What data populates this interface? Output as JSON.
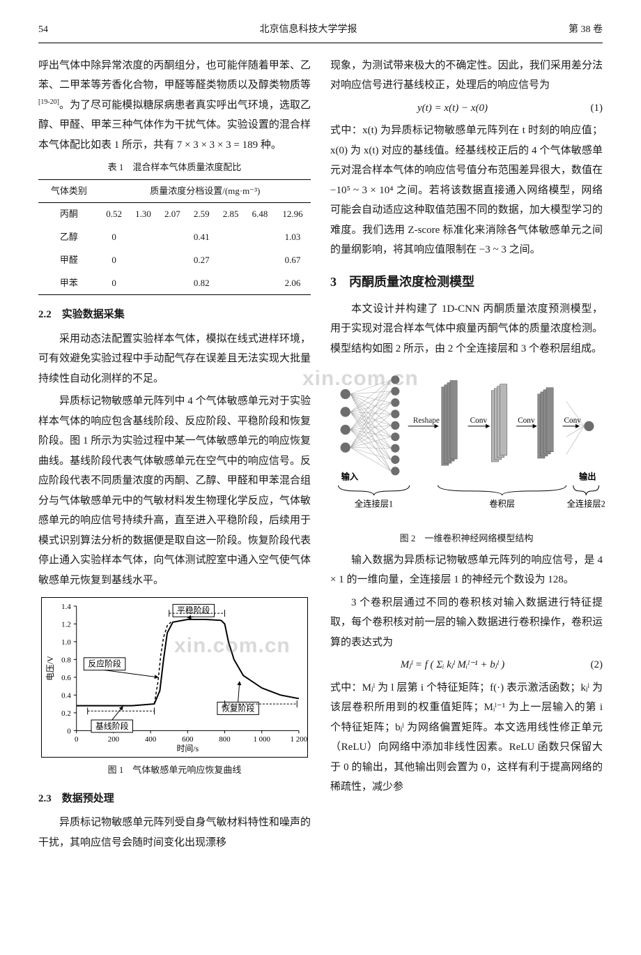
{
  "header": {
    "page_no": "54",
    "journal": "北京信息科技大学学报",
    "volume": "第 38 卷"
  },
  "left": {
    "p1": "呼出气体中除异常浓度的丙酮组分，也可能伴随着甲苯、乙苯、二甲苯等芳香化合物，甲醛等醛类物质以及醇类物质等",
    "p1_cite": "[19-20]",
    "p1b": "。为了尽可能模拟糖尿病患者真实呼出气环境，选取乙醇、甲醛、甲苯三种气体作为干扰气体。实验设置的混合样本气体配比如表 1 所示，共有 7 × 3 × 3 × 3 = 189 种。",
    "table1": {
      "caption": "表 1　混合样本气体质量浓度配比",
      "col_head_left": "气体类别",
      "col_head_right": "质量浓度分档设置/(mg·m⁻³)",
      "rows": [
        {
          "name": "丙酮",
          "cells": [
            "0.52",
            "1.30",
            "2.07",
            "2.59",
            "2.85",
            "6.48",
            "12.96"
          ]
        },
        {
          "name": "乙醇",
          "cells": [
            "0",
            "",
            "",
            "0.41",
            "",
            "",
            "1.03"
          ]
        },
        {
          "name": "甲醛",
          "cells": [
            "0",
            "",
            "",
            "0.27",
            "",
            "",
            "0.67"
          ]
        },
        {
          "name": "甲苯",
          "cells": [
            "0",
            "",
            "",
            "0.82",
            "",
            "",
            "2.06"
          ]
        }
      ]
    },
    "sec22_title": "2.2　实验数据采集",
    "sec22_p1": "采用动态法配置实验样本气体，模拟在线式进样环境，可有效避免实验过程中手动配气存在误差且无法实现大批量持续性自动化测样的不足。",
    "sec22_p2": "异质标记物敏感单元阵列中 4 个气体敏感单元对于实验样本气体的响应包含基线阶段、反应阶段、平稳阶段和恢复阶段。图 1 所示为实验过程中某一气体敏感单元的响应恢复曲线。基线阶段代表气体敏感单元在空气中的响应信号。反应阶段代表不同质量浓度的丙酮、乙醇、甲醛和甲苯混合组分与气体敏感单元中的气敏材料发生物理化学反应，气体敏感单元的响应信号持续升高，直至进入平稳阶段，后续用于模式识别算法分析的数据便是取自这一阶段。恢复阶段代表停止通入实验样本气体，向气体测试腔室中通入空气使气体敏感单元恢复到基线水平。",
    "fig1": {
      "caption": "图 1　气体敏感单元响应恢复曲线",
      "xlabel": "时间/s",
      "ylabel": "电压/V",
      "xlim": [
        0,
        1200
      ],
      "ylim": [
        0,
        1.4
      ],
      "xticks": [
        0,
        200,
        400,
        600,
        800,
        1000,
        1200
      ],
      "yticks": [
        0,
        0.2,
        0.4,
        0.6,
        0.8,
        1.0,
        1.2,
        1.4
      ],
      "annot": {
        "stable": "平稳阶段",
        "react": "反应阶段",
        "baseline": "基线阶段",
        "recover": "恢复阶段"
      },
      "curve_main": [
        [
          0,
          0.28
        ],
        [
          150,
          0.28
        ],
        [
          300,
          0.28
        ],
        [
          420,
          0.3
        ],
        [
          450,
          0.45
        ],
        [
          470,
          0.8
        ],
        [
          490,
          1.1
        ],
        [
          520,
          1.22
        ],
        [
          600,
          1.25
        ],
        [
          700,
          1.25
        ],
        [
          780,
          1.24
        ],
        [
          800,
          1.2
        ],
        [
          820,
          1.0
        ],
        [
          850,
          0.8
        ],
        [
          900,
          0.62
        ],
        [
          1000,
          0.48
        ],
        [
          1100,
          0.4
        ],
        [
          1200,
          0.36
        ]
      ],
      "curve_dash": [
        [
          420,
          0.3
        ],
        [
          440,
          0.55
        ],
        [
          455,
          0.85
        ],
        [
          470,
          1.05
        ],
        [
          490,
          1.18
        ],
        [
          510,
          1.22
        ]
      ],
      "line_color": "#000000",
      "axis_color": "#000000",
      "bg": "#ffffff",
      "font_size_tick": 11,
      "font_size_label": 12,
      "font_size_annot": 12
    },
    "sec23_title": "2.3　数据预处理",
    "sec23_p1": "异质标记物敏感单元阵列受自身气敏材料特性和噪声的干扰，其响应信号会随时间变化出现漂移"
  },
  "right": {
    "p1": "现象，为测试带来极大的不确定性。因此，我们采用差分法对响应信号进行基线校正，处理后的响应信号为",
    "eq1": "y(t) = x(t) − x(0)",
    "eq1_num": "(1)",
    "p2": "式中：x(t) 为异质标记物敏感单元阵列在 t 时刻的响应值；x(0) 为 x(t) 对应的基线值。经基线校正后的 4 个气体敏感单元对混合样本气体的响应信号值分布范围差异很大，数值在 −10⁵ ~ 3 × 10⁴ 之间。若将该数据直接通入网络模型，网络可能会自动适应这种取值范围不同的数据，加大模型学习的难度。我们选用 Z-score 标准化来消除各气体敏感单元之间的量纲影响，将其响应值限制在 −3 ~ 3 之间。",
    "sec3_title": "3　丙酮质量浓度检测模型",
    "sec3_p1": "本文设计并构建了 1D-CNN 丙酮质量浓度预测模型，用于实现对混合样本气体中痕量丙酮气体的质量浓度检测。模型结构如图 2 所示，由 2 个全连接层和 3 个卷积层组成。",
    "fig2": {
      "caption": "图 2　一维卷积神经网络模型结构",
      "labels": {
        "input": "输入",
        "output": "输出",
        "reshape": "Reshape",
        "conv": "Conv",
        "fc1": "全连接层1",
        "convlayer": "卷积层",
        "fc2": "全连接层2"
      },
      "colors": {
        "node": "#6d6d6d",
        "bar": "#8a8a8a",
        "bar_light": "#b7b7b7",
        "line": "#a0a0a0",
        "brace": "#000000",
        "text": "#1a1a1a"
      },
      "font_size": 12
    },
    "p_after_fig2_a": "输入数据为异质标记物敏感单元阵列的响应信号，是 4 × 1 的一维向量，全连接层 1 的神经元个数设为 128。",
    "p_after_fig2_b": "3 个卷积层通过不同的卷积核对输入数据进行特征提取，每个卷积核对前一层的输入数据进行卷积操作，卷积运算的表达式为",
    "eq2": "Mⱼˡ = f ( Σᵢ kⱼˡ Mᵢˡ⁻¹ + bⱼˡ )",
    "eq2_num": "(2)",
    "p_eq2_after": "式中：Mⱼˡ 为 l 层第 i 个特征矩阵；f(·) 表示激活函数；kⱼˡ 为该层卷积所用到的权重值矩阵；Mᵢˡ⁻¹ 为上一层输入的第 i 个特征矩阵；bⱼˡ 为网络偏置矩阵。本文选用线性修正单元（ReLU）向网络中添加非线性因素。ReLU 函数只保留大于 0 的输出，其他输出则会置为 0，这样有利于提高网络的稀疏性，减少参"
  },
  "watermark_text": "xin.com.cn"
}
